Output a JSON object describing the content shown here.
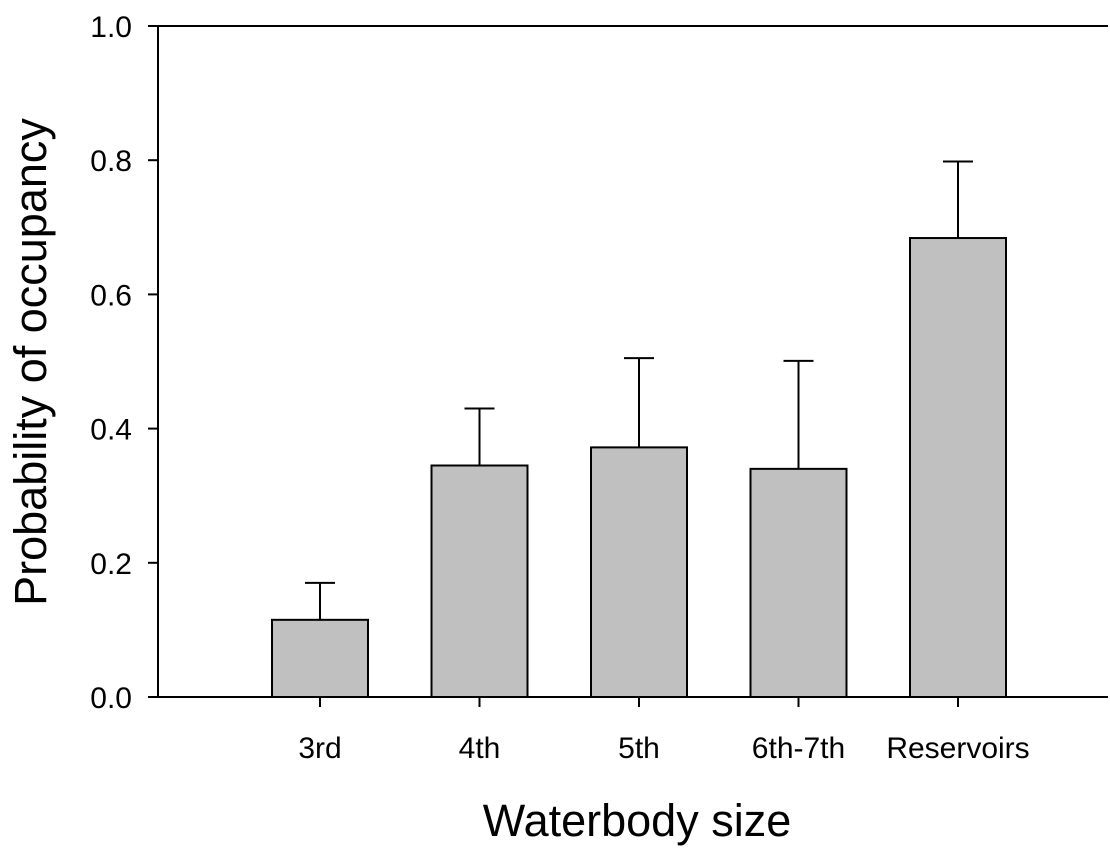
{
  "chart_data": {
    "type": "bar",
    "categories": [
      "3rd",
      "4th",
      "5th",
      "6th-7th",
      "Reservoirs"
    ],
    "series": [
      {
        "values": [
          0.115,
          0.345,
          0.372,
          0.34,
          0.684
        ],
        "error_upper": [
          0.055,
          0.085,
          0.133,
          0.161,
          0.114
        ]
      }
    ],
    "title": "",
    "xlabel": "Waterbody size",
    "ylabel": "Probability of occupancy",
    "ylim": [
      0,
      1.0
    ],
    "yticks": [
      0.0,
      0.2,
      0.4,
      0.6,
      0.8,
      1.0
    ],
    "ytick_labels": [
      "0.0",
      "0.2",
      "0.4",
      "0.6",
      "0.8",
      "1.0"
    ],
    "grid": false,
    "legend": "none",
    "colors": {
      "bar_fill": "#c0c0c0",
      "bar_stroke": "#000000",
      "axis": "#000000"
    }
  }
}
